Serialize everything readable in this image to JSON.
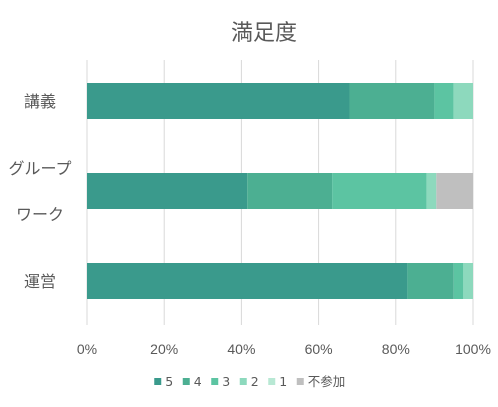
{
  "chart_data": {
    "type": "bar",
    "orientation": "horizontal",
    "stacked": true,
    "percent": true,
    "title": "満足度",
    "categories": [
      {
        "lines": [
          "講義"
        ]
      },
      {
        "lines": [
          "グループ",
          "ワーク"
        ]
      },
      {
        "lines": [
          "運営"
        ]
      }
    ],
    "series": [
      {
        "name": "5",
        "color": "#3a9a8c",
        "values": [
          68,
          41.5,
          83
        ]
      },
      {
        "name": "4",
        "color": "#4caf92",
        "values": [
          22,
          22,
          12
        ]
      },
      {
        "name": "3",
        "color": "#5cc4a2",
        "values": [
          5,
          24.5,
          2.5
        ]
      },
      {
        "name": "2",
        "color": "#8dd9bd",
        "values": [
          5,
          2.5,
          2.5
        ]
      },
      {
        "name": "1",
        "color": "#b8e8d4",
        "values": [
          0,
          0,
          0
        ]
      },
      {
        "name": "不参加",
        "color": "#bfbfbf",
        "values": [
          0,
          9.5,
          0
        ]
      }
    ],
    "xlim": [
      0,
      100
    ],
    "xticks": [
      "0%",
      "20%",
      "40%",
      "60%",
      "80%",
      "100%"
    ],
    "grid": true,
    "legend_position": "bottom"
  }
}
